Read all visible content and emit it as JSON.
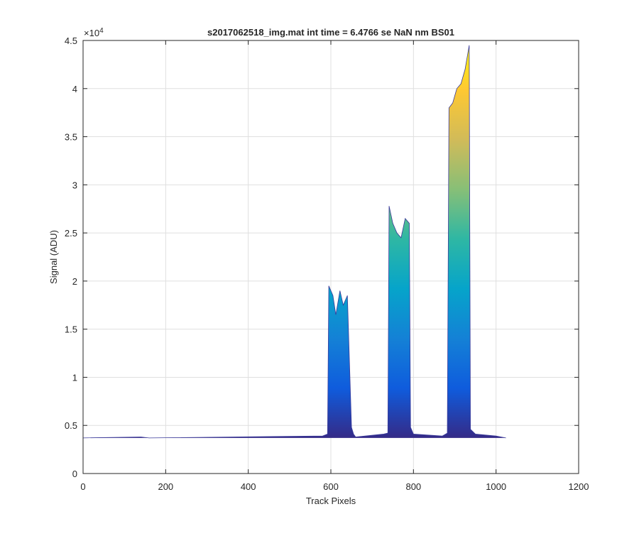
{
  "chart_data": {
    "type": "area",
    "title": "s2017062518_img.mat int time = 6.4766 se  NaN nm BS01",
    "xlabel": "Track Pixels",
    "ylabel": "Signal (ADU)",
    "exponent_label": "×10",
    "exponent_power": "4",
    "xlim": [
      0,
      1200
    ],
    "ylim": [
      0,
      45000
    ],
    "xticks": [
      0,
      200,
      400,
      600,
      800,
      1000,
      1200
    ],
    "xtick_labels": [
      "0",
      "200",
      "400",
      "600",
      "800",
      "1000",
      "1200"
    ],
    "yticks": [
      0,
      5000,
      10000,
      15000,
      20000,
      25000,
      30000,
      35000,
      40000,
      45000
    ],
    "ytick_labels": [
      "0",
      "0.5",
      "1",
      "1.5",
      "2",
      "2.5",
      "3",
      "3.5",
      "4",
      "4.5"
    ],
    "grid": true,
    "colormap": [
      "#352a87",
      "#0f5cdd",
      "#1481d6",
      "#06a4ca",
      "#2eb7a4",
      "#87bf77",
      "#d1bb59",
      "#fec832",
      "#f9fb0e"
    ],
    "baseline": 3700,
    "x": [
      0,
      140,
      160,
      580,
      592,
      595,
      605,
      612,
      622,
      630,
      640,
      650,
      655,
      660,
      728,
      738,
      741,
      750,
      760,
      770,
      780,
      790,
      793,
      800,
      870,
      882,
      886,
      895,
      905,
      915,
      925,
      935,
      938,
      950,
      1000,
      1024
    ],
    "series": [
      {
        "values": [
          3700,
          3800,
          3700,
          3900,
          4100,
          19500,
          18500,
          16500,
          19000,
          17500,
          18500,
          4800,
          4100,
          3800,
          4100,
          4200,
          27800,
          26000,
          25000,
          24500,
          26500,
          26000,
          4800,
          4100,
          3900,
          4200,
          38000,
          38500,
          40000,
          40500,
          42000,
          44500,
          4600,
          4100,
          3900,
          3700
        ]
      }
    ]
  }
}
